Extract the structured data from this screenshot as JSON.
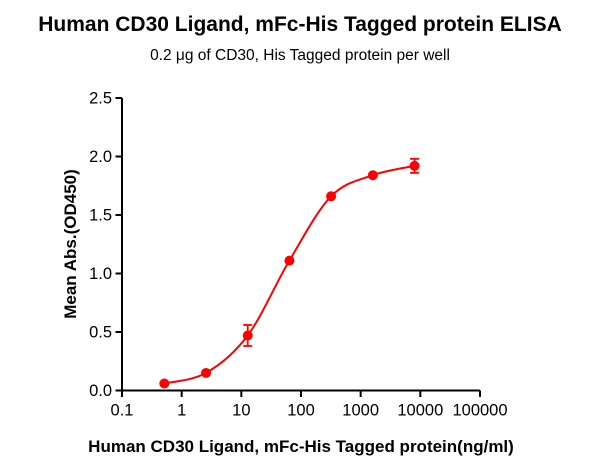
{
  "figure": {
    "title": "Human CD30 Ligand, mFc-His Tagged protein ELISA",
    "subtitle": "0.2 μg of CD30, His Tagged protein per well"
  },
  "chart_data": {
    "type": "line",
    "title": "Human CD30 Ligand, mFc-His Tagged protein ELISA",
    "subtitle": "0.2 μg of CD30, His Tagged protein per well",
    "xlabel": "Human CD30 Ligand, mFc-His Tagged protein(ng/ml)",
    "ylabel": "Mean Abs.(OD450)",
    "x_scale": "log10",
    "xlim": [
      0.1,
      100000
    ],
    "ylim": [
      0,
      2.5
    ],
    "x_ticks": [
      "0.1",
      "1",
      "10",
      "100",
      "1000",
      "10000",
      "100000"
    ],
    "y_ticks": [
      "0.0",
      "0.5",
      "1.0",
      "1.5",
      "2.0",
      "2.5"
    ],
    "grid": false,
    "legend": false,
    "series": [
      {
        "name": "Human CD30 Ligand, mFc-His Tagged protein",
        "color": "#FF0000",
        "marker": "filled-circle",
        "curve": "4PL sigmoid dose-response fit",
        "x": [
          0.512,
          2.56,
          12.8,
          64,
          320,
          1600,
          8000
        ],
        "y": [
          0.06,
          0.15,
          0.47,
          1.11,
          1.66,
          1.84,
          1.92
        ],
        "y_err": [
          0,
          0,
          0.09,
          0,
          0,
          0,
          0.06
        ]
      }
    ]
  }
}
